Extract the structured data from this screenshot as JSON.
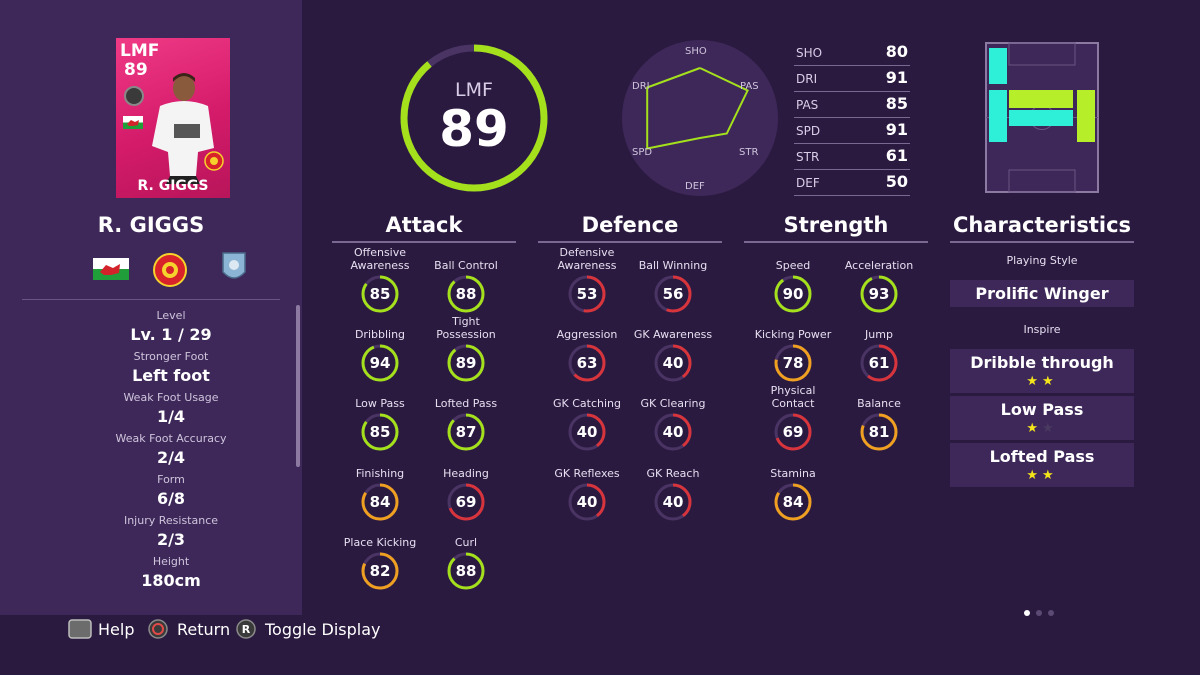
{
  "card": {
    "position": "LMF",
    "rating": "89",
    "name": "R. GIGGS"
  },
  "player_name": "R. GIGGS",
  "info": [
    {
      "label": "Level",
      "value": "Lv. 1 / 29"
    },
    {
      "label": "Stronger Foot",
      "value": "Left foot"
    },
    {
      "label": "Weak Foot Usage",
      "value": "1/4"
    },
    {
      "label": "Weak Foot Accuracy",
      "value": "2/4"
    },
    {
      "label": "Form",
      "value": "6/8"
    },
    {
      "label": "Injury Resistance",
      "value": "2/3"
    },
    {
      "label": "Height",
      "value": "180cm"
    }
  ],
  "overall": {
    "position": "LMF",
    "value": 89
  },
  "radar": {
    "labels": [
      "SHO",
      "PAS",
      "STR",
      "DEF",
      "SPD",
      "DRI"
    ]
  },
  "stat_table": [
    {
      "key": "SHO",
      "value": 80
    },
    {
      "key": "DRI",
      "value": 91
    },
    {
      "key": "PAS",
      "value": 85
    },
    {
      "key": "SPD",
      "value": 91
    },
    {
      "key": "STR",
      "value": 61
    },
    {
      "key": "DEF",
      "value": 50
    }
  ],
  "sections": {
    "attack": {
      "title": "Attack",
      "stats": [
        {
          "label": "Offensive Awareness",
          "value": 85
        },
        {
          "label": "Ball Control",
          "value": 88
        },
        {
          "label": "Dribbling",
          "value": 94
        },
        {
          "label": "Tight Possession",
          "value": 89
        },
        {
          "label": "Low Pass",
          "value": 85
        },
        {
          "label": "Lofted Pass",
          "value": 87
        },
        {
          "label": "Finishing",
          "value": 84
        },
        {
          "label": "Heading",
          "value": 69
        },
        {
          "label": "Place Kicking",
          "value": 82
        },
        {
          "label": "Curl",
          "value": 88
        }
      ]
    },
    "defence": {
      "title": "Defence",
      "stats": [
        {
          "label": "Defensive Awareness",
          "value": 53
        },
        {
          "label": "Ball Winning",
          "value": 56
        },
        {
          "label": "Aggression",
          "value": 63
        },
        {
          "label": "GK Awareness",
          "value": 40
        },
        {
          "label": "GK Catching",
          "value": 40
        },
        {
          "label": "GK Clearing",
          "value": 40
        },
        {
          "label": "GK Reflexes",
          "value": 40
        },
        {
          "label": "GK Reach",
          "value": 40
        }
      ]
    },
    "strength": {
      "title": "Strength",
      "stats": [
        {
          "label": "Speed",
          "value": 90
        },
        {
          "label": "Acceleration",
          "value": 93
        },
        {
          "label": "Kicking Power",
          "value": 78
        },
        {
          "label": "Jump",
          "value": 61
        },
        {
          "label": "Physical Contact",
          "value": 69
        },
        {
          "label": "Balance",
          "value": 81
        },
        {
          "label": "Stamina",
          "value": 84
        }
      ]
    }
  },
  "characteristics": {
    "title": "Characteristics",
    "playing_style_label": "Playing Style",
    "playing_style": "Prolific Winger",
    "inspire_label": "Inspire",
    "inspire": [
      {
        "name": "Dribble through",
        "stars": 2,
        "max": 2
      },
      {
        "name": "Low Pass",
        "stars": 1,
        "max": 2
      },
      {
        "name": "Lofted Pass",
        "stars": 2,
        "max": 2
      }
    ]
  },
  "footer": {
    "help": "Help",
    "return": "Return",
    "toggle": "Toggle Display"
  },
  "colors": {
    "background": "#2b1a40",
    "panel": "#3e2859",
    "ring_green": "#a4e01c",
    "ring_orange": "#f0a020",
    "ring_red": "#d8343c",
    "card_pink": "#e8287a",
    "pitch_cyan": "#2ef0d8",
    "pitch_green": "#b6ee2a"
  }
}
